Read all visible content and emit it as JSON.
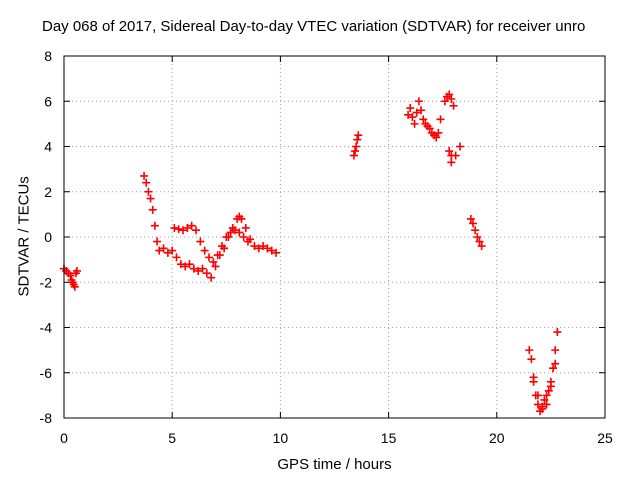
{
  "chart_data": {
    "type": "scatter",
    "title": "Day 068 of 2017, Sidereal Day-to-day VTEC variation (SDTVAR) for receiver unro",
    "xlabel": "GPS time / hours",
    "ylabel": "SDTVAR / TECUs",
    "xlim": [
      0,
      25
    ],
    "ylim": [
      -8,
      8
    ],
    "xticks": [
      "0",
      "5",
      "10",
      "15",
      "20",
      "25"
    ],
    "yticks": [
      "-8",
      "-6",
      "-4",
      "-2",
      "0",
      "2",
      "4",
      "6",
      "8"
    ],
    "grid": true,
    "marker": "+",
    "color": "#ff0000",
    "series": [
      {
        "x": [
          0.0,
          0.1,
          0.2,
          0.3,
          0.35,
          0.4,
          0.45,
          0.5,
          0.55,
          0.6,
          3.7,
          3.8,
          3.9,
          4.0,
          4.1,
          4.2,
          4.3,
          4.4,
          4.6,
          4.8,
          5.0,
          5.2,
          5.4,
          5.6,
          5.8,
          6.0,
          6.2,
          6.4,
          6.6,
          6.8,
          7.0,
          7.2,
          7.4,
          7.6,
          7.8,
          8.0,
          8.1,
          8.2,
          8.4,
          8.6,
          8.8,
          9.0,
          9.2,
          9.4,
          9.6,
          9.8,
          5.1,
          5.3,
          5.5,
          5.7,
          5.9,
          6.1,
          6.3,
          6.5,
          6.7,
          6.9,
          7.1,
          7.3,
          7.5,
          7.7,
          7.9,
          8.1,
          8.3,
          8.5,
          13.4,
          13.45,
          13.5,
          13.55,
          13.6,
          15.9,
          16.0,
          16.1,
          16.2,
          16.3,
          16.4,
          16.5,
          16.6,
          16.7,
          16.8,
          16.9,
          17.0,
          17.1,
          17.2,
          17.3,
          17.4,
          17.6,
          17.7,
          17.8,
          17.9,
          18.0,
          17.9,
          17.8,
          17.9,
          18.1,
          18.3,
          18.8,
          18.9,
          19.0,
          19.1,
          19.2,
          19.3,
          21.5,
          21.6,
          21.7,
          21.8,
          21.9,
          22.0,
          22.1,
          22.2,
          22.3,
          22.4,
          22.5,
          22.6,
          22.7,
          22.8,
          21.7,
          21.9,
          22.1,
          22.3,
          22.5,
          22.7
        ],
        "y": [
          -1.4,
          -1.5,
          -1.6,
          -1.7,
          -1.9,
          -2.0,
          -2.1,
          -2.2,
          -1.6,
          -1.5,
          2.7,
          2.4,
          2.0,
          1.7,
          1.2,
          0.5,
          -0.2,
          -0.6,
          -0.5,
          -0.7,
          -0.6,
          -0.9,
          -1.2,
          -1.3,
          -1.2,
          -1.4,
          -1.5,
          -1.4,
          -1.6,
          -1.8,
          -1.3,
          -0.8,
          -0.5,
          0.0,
          0.4,
          0.8,
          0.9,
          0.8,
          0.4,
          -0.1,
          -0.4,
          -0.5,
          -0.4,
          -0.5,
          -0.6,
          -0.7,
          0.4,
          0.35,
          0.3,
          0.4,
          0.5,
          0.3,
          -0.2,
          -0.6,
          -0.9,
          -1.1,
          -0.8,
          -0.4,
          0.0,
          0.2,
          0.3,
          0.2,
          0.0,
          -0.2,
          3.6,
          3.8,
          4.0,
          4.3,
          4.5,
          5.4,
          5.7,
          5.3,
          5.0,
          5.5,
          6.0,
          5.6,
          5.2,
          5.0,
          4.9,
          4.8,
          4.6,
          4.5,
          4.4,
          4.6,
          5.2,
          6.0,
          6.2,
          6.3,
          6.1,
          5.8,
          3.6,
          3.8,
          3.3,
          3.6,
          4.0,
          0.8,
          0.6,
          0.3,
          0.0,
          -0.2,
          -0.4,
          -5.0,
          -5.4,
          -6.2,
          -7.0,
          -7.4,
          -7.7,
          -7.6,
          -7.2,
          -7.0,
          -6.8,
          -6.4,
          -5.8,
          -5.0,
          -4.2,
          -6.4,
          -7.0,
          -7.5,
          -7.4,
          -6.6,
          -5.6
        ]
      }
    ]
  }
}
